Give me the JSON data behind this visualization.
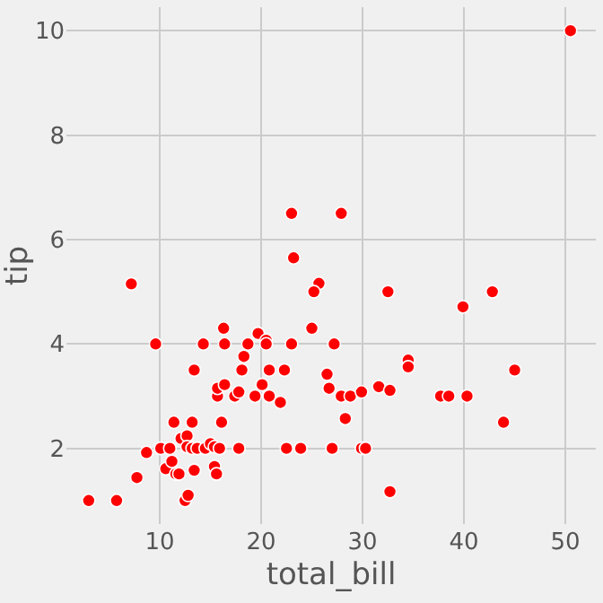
{
  "chart_data": {
    "type": "scatter",
    "xlabel": "total_bill",
    "ylabel": "tip",
    "xlim": [
      0.8,
      53
    ],
    "ylim": [
      0.55,
      10.45
    ],
    "xticks": [
      10,
      20,
      30,
      40,
      50
    ],
    "yticks": [
      2,
      4,
      6,
      8,
      10
    ],
    "grid": true,
    "marker": "circle",
    "series": [
      {
        "color": "#ff0000",
        "x": [
          7.2,
          9.6,
          14.3,
          16.3,
          16.4,
          19.7,
          20.5,
          20.5,
          18.7,
          18.3,
          18.1,
          20.8,
          22.3,
          23.0,
          13.4,
          15.7,
          15.7,
          16.4,
          17.4,
          17.8,
          19.4,
          20.1,
          20.8,
          21.9,
          11.4,
          13.2,
          16.1,
          12.1,
          12.7,
          8.7,
          10.1,
          11.0,
          12.7,
          13.2,
          13.7,
          14.5,
          15.0,
          15.4,
          15.9,
          17.8,
          22.5,
          23.9,
          10.6,
          11.2,
          11.6,
          11.9,
          13.4,
          15.4,
          15.6,
          7.75,
          3.0,
          5.75,
          12.5,
          12.8,
          23.0,
          23.2,
          50.5,
          27.9,
          25.7,
          25.2,
          32.5,
          42.8,
          39.9,
          25.0,
          27.2,
          34.5,
          34.5,
          45.0,
          26.5,
          26.7,
          27.9,
          28.8,
          29.9,
          31.6,
          32.7,
          37.7,
          38.5,
          40.3,
          28.3,
          43.9,
          27.0,
          29.9,
          30.3,
          32.7
        ],
        "values": [
          5.15,
          4.0,
          4.0,
          4.3,
          4.0,
          4.2,
          4.07,
          4.0,
          4.0,
          3.76,
          3.5,
          3.5,
          3.5,
          4.0,
          3.5,
          3.0,
          3.15,
          3.22,
          3.0,
          3.08,
          3.0,
          3.22,
          3.0,
          2.88,
          2.5,
          2.5,
          2.5,
          2.19,
          2.24,
          1.92,
          2.0,
          2.0,
          2.03,
          2.0,
          2.0,
          2.0,
          2.09,
          2.03,
          2.0,
          2.0,
          2.0,
          2.0,
          1.61,
          1.75,
          1.51,
          1.51,
          1.58,
          1.65,
          1.51,
          1.44,
          1.0,
          1.0,
          1.0,
          1.1,
          6.5,
          5.65,
          10.0,
          6.5,
          5.16,
          5.0,
          5.0,
          5.0,
          4.71,
          4.3,
          4.0,
          3.69,
          3.56,
          3.5,
          3.42,
          3.15,
          3.0,
          3.0,
          3.08,
          3.18,
          3.11,
          3.0,
          3.0,
          3.0,
          2.57,
          2.5,
          2.0,
          2.0,
          2.0,
          1.17
        ]
      }
    ]
  }
}
